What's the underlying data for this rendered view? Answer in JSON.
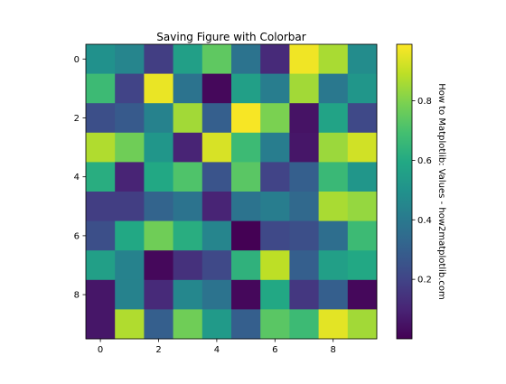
{
  "chart_data": {
    "type": "heatmap",
    "title": "Saving Figure with Colorbar",
    "colormap": "viridis",
    "rows": 10,
    "cols": 10,
    "x_ticks": [
      0,
      2,
      4,
      6,
      8
    ],
    "x_tick_labels": [
      "0",
      "2",
      "4",
      "6",
      "8"
    ],
    "y_ticks": [
      0,
      2,
      4,
      6,
      8
    ],
    "y_tick_labels": [
      "0",
      "2",
      "4",
      "6",
      "8"
    ],
    "values": [
      [
        0.5,
        0.45,
        0.18,
        0.56,
        0.75,
        0.38,
        0.12,
        0.98,
        0.87,
        0.48
      ],
      [
        0.68,
        0.2,
        0.97,
        0.38,
        0.02,
        0.56,
        0.42,
        0.86,
        0.4,
        0.52
      ],
      [
        0.24,
        0.28,
        0.44,
        0.86,
        0.3,
        0.99,
        0.8,
        0.05,
        0.58,
        0.22
      ],
      [
        0.88,
        0.78,
        0.52,
        0.1,
        0.94,
        0.68,
        0.42,
        0.06,
        0.85,
        0.93
      ],
      [
        0.62,
        0.1,
        0.6,
        0.72,
        0.26,
        0.74,
        0.2,
        0.3,
        0.67,
        0.52
      ],
      [
        0.18,
        0.18,
        0.32,
        0.38,
        0.1,
        0.38,
        0.42,
        0.34,
        0.87,
        0.84
      ],
      [
        0.24,
        0.6,
        0.78,
        0.62,
        0.45,
        0.0,
        0.22,
        0.24,
        0.36,
        0.68
      ],
      [
        0.56,
        0.44,
        0.02,
        0.14,
        0.22,
        0.64,
        0.9,
        0.3,
        0.56,
        0.6
      ],
      [
        0.06,
        0.44,
        0.12,
        0.46,
        0.38,
        0.02,
        0.6,
        0.16,
        0.3,
        0.02
      ],
      [
        0.06,
        0.88,
        0.3,
        0.78,
        0.54,
        0.3,
        0.74,
        0.68,
        0.96,
        0.86
      ]
    ],
    "colorbar": {
      "label": "How to Matplotlib: Values - how2matplotlib.com",
      "range": [
        0.0,
        1.0
      ],
      "ticks": [
        0.2,
        0.4,
        0.6,
        0.8
      ],
      "tick_labels": [
        "0.2",
        "0.4",
        "0.6",
        "0.8"
      ]
    }
  }
}
